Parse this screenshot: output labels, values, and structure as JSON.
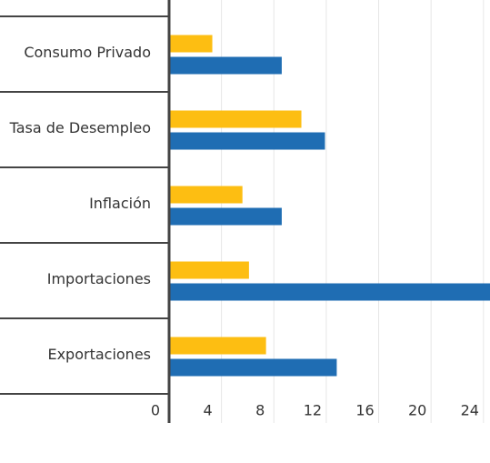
{
  "chart_data": {
    "type": "hbar",
    "categories": [
      "Consumo Privado",
      "Tasa de Desempleo",
      "Inflación",
      "Importaciones",
      "Exportaciones"
    ],
    "series": [
      {
        "color": "#fdbe12",
        "values": [
          3.3,
          10.1,
          5.6,
          6.1,
          7.4
        ]
      },
      {
        "color": "#1f6db3",
        "values": [
          8.6,
          11.9,
          8.6,
          25,
          12.8
        ]
      }
    ],
    "xlim": [
      0,
      24.5
    ],
    "xticks": [
      0,
      4,
      8,
      12,
      16,
      20,
      24
    ],
    "grid": true
  }
}
